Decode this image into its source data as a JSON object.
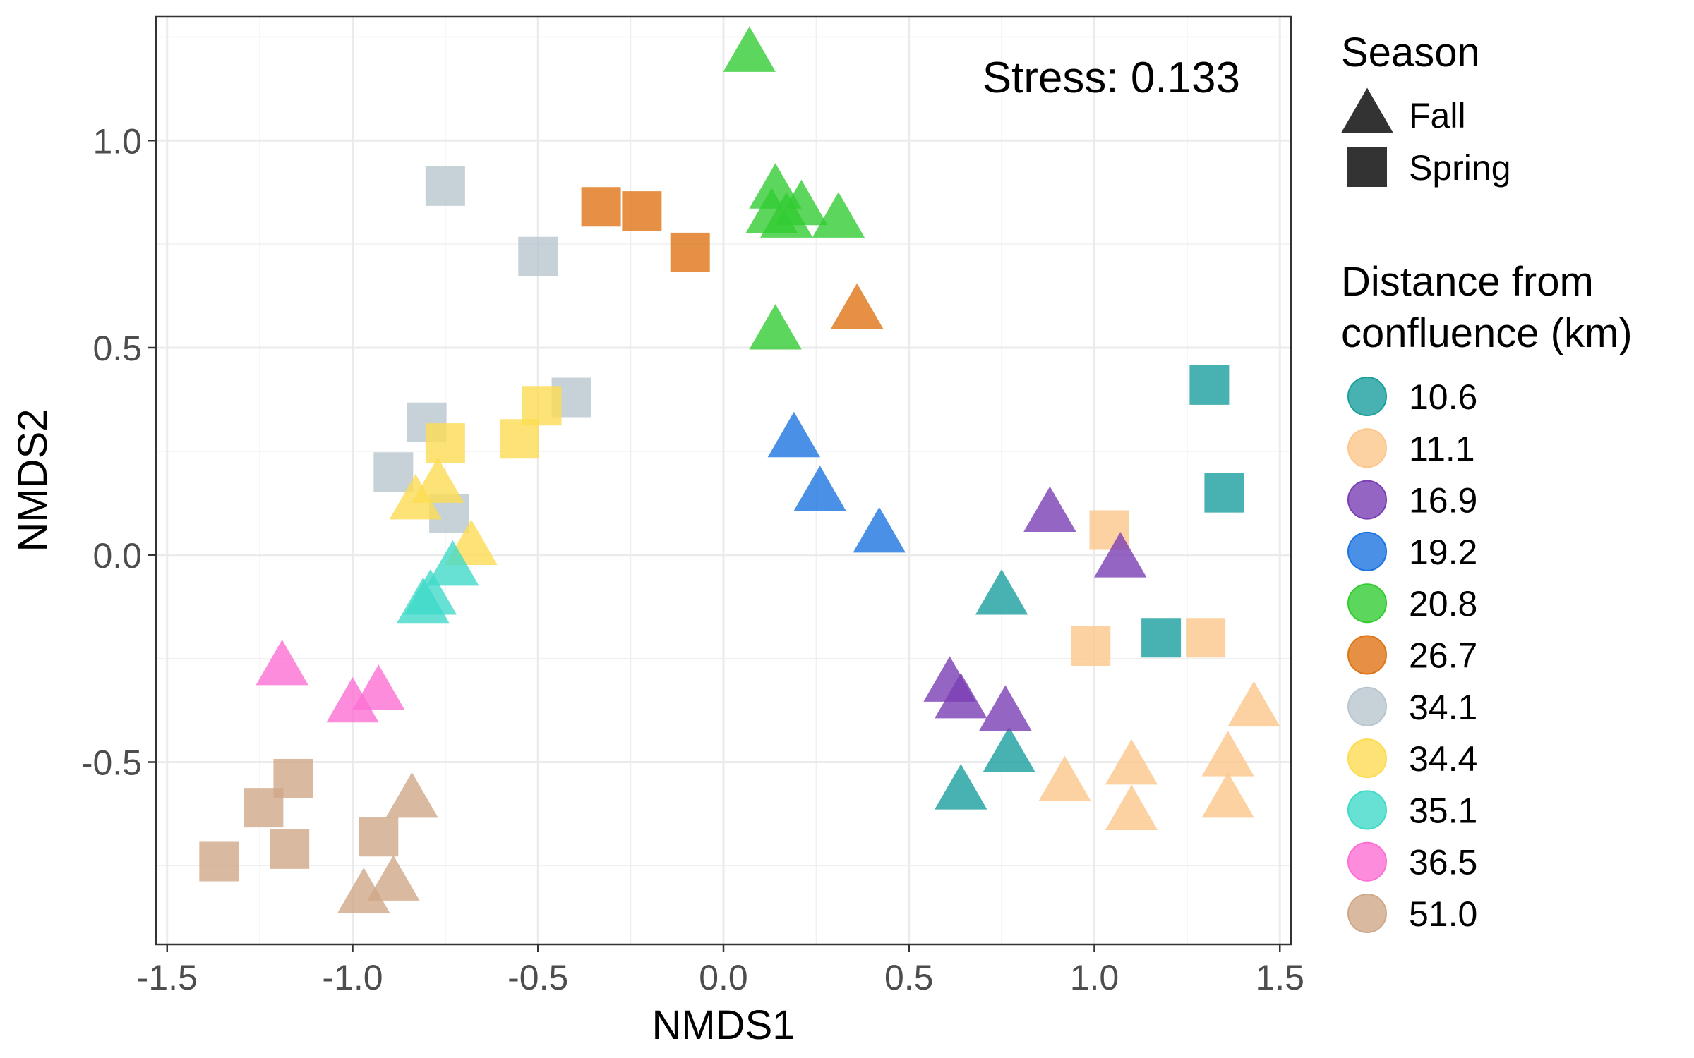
{
  "chart_data": {
    "type": "scatter",
    "title": "",
    "xlabel": "NMDS1",
    "ylabel": "NMDS2",
    "xlim": [
      -1.53,
      1.53
    ],
    "ylim": [
      -0.94,
      1.3
    ],
    "xticks": [
      -1.5,
      -1.0,
      -0.5,
      0.0,
      0.5,
      1.0,
      1.5
    ],
    "xtick_labels": [
      "-1.5",
      "-1.0",
      "-0.5",
      "0.0",
      "0.5",
      "1.0",
      "1.5"
    ],
    "yticks": [
      -0.5,
      0.0,
      0.5,
      1.0
    ],
    "ytick_labels": [
      "-0.5",
      "0.0",
      "0.5",
      "1.0"
    ],
    "grid": true,
    "annotation": "Stress: 0.133",
    "shape_legend": {
      "title": "Season",
      "entries": [
        {
          "label": "Fall",
          "shape": "triangle"
        },
        {
          "label": "Spring",
          "shape": "square"
        }
      ]
    },
    "color_legend": {
      "title_lines": [
        "Distance from",
        "confluence (km)"
      ],
      "entries": [
        {
          "label": "10.6",
          "color": "#1a9e9e"
        },
        {
          "label": "11.1",
          "color": "#fcc78b"
        },
        {
          "label": "16.9",
          "color": "#7b3fb5"
        },
        {
          "label": "19.2",
          "color": "#1c74e0"
        },
        {
          "label": "20.8",
          "color": "#33cc33"
        },
        {
          "label": "26.7",
          "color": "#de7415"
        },
        {
          "label": "34.1",
          "color": "#b9c6ce"
        },
        {
          "label": "34.4",
          "color": "#fddc52"
        },
        {
          "label": "35.1",
          "color": "#40dac9"
        },
        {
          "label": "36.5",
          "color": "#fd6fd3"
        },
        {
          "label": "51.0",
          "color": "#cfa888"
        }
      ]
    },
    "series": [
      {
        "group": "10.6",
        "points": [
          {
            "x": 1.31,
            "y": 0.41,
            "season": "Spring"
          },
          {
            "x": 1.35,
            "y": 0.15,
            "season": "Spring"
          },
          {
            "x": 1.18,
            "y": -0.2,
            "season": "Spring"
          },
          {
            "x": 0.75,
            "y": -0.1,
            "season": "Fall"
          },
          {
            "x": 0.77,
            "y": -0.48,
            "season": "Fall"
          },
          {
            "x": 0.64,
            "y": -0.57,
            "season": "Fall"
          }
        ]
      },
      {
        "group": "11.1",
        "points": [
          {
            "x": 1.04,
            "y": 0.06,
            "season": "Spring"
          },
          {
            "x": 0.99,
            "y": -0.22,
            "season": "Spring"
          },
          {
            "x": 1.3,
            "y": -0.2,
            "season": "Spring"
          },
          {
            "x": 1.43,
            "y": -0.37,
            "season": "Fall"
          },
          {
            "x": 1.36,
            "y": -0.49,
            "season": "Fall"
          },
          {
            "x": 1.36,
            "y": -0.59,
            "season": "Fall"
          },
          {
            "x": 1.1,
            "y": -0.51,
            "season": "Fall"
          },
          {
            "x": 1.1,
            "y": -0.62,
            "season": "Fall"
          },
          {
            "x": 0.92,
            "y": -0.55,
            "season": "Fall"
          }
        ]
      },
      {
        "group": "16.9",
        "points": [
          {
            "x": 0.88,
            "y": 0.1,
            "season": "Fall"
          },
          {
            "x": 1.07,
            "y": -0.01,
            "season": "Fall"
          },
          {
            "x": 0.61,
            "y": -0.31,
            "season": "Fall"
          },
          {
            "x": 0.64,
            "y": -0.35,
            "season": "Fall"
          },
          {
            "x": 0.76,
            "y": -0.38,
            "season": "Fall"
          }
        ]
      },
      {
        "group": "19.2",
        "points": [
          {
            "x": 0.19,
            "y": 0.28,
            "season": "Fall"
          },
          {
            "x": 0.26,
            "y": 0.15,
            "season": "Fall"
          },
          {
            "x": 0.42,
            "y": 0.05,
            "season": "Fall"
          }
        ]
      },
      {
        "group": "20.8",
        "points": [
          {
            "x": 0.07,
            "y": 1.21,
            "season": "Fall"
          },
          {
            "x": 0.14,
            "y": 0.88,
            "season": "Fall"
          },
          {
            "x": 0.21,
            "y": 0.84,
            "season": "Fall"
          },
          {
            "x": 0.13,
            "y": 0.82,
            "season": "Fall"
          },
          {
            "x": 0.17,
            "y": 0.81,
            "season": "Fall"
          },
          {
            "x": 0.31,
            "y": 0.81,
            "season": "Fall"
          },
          {
            "x": 0.14,
            "y": 0.54,
            "season": "Fall"
          }
        ]
      },
      {
        "group": "26.7",
        "points": [
          {
            "x": -0.33,
            "y": 0.84,
            "season": "Spring"
          },
          {
            "x": -0.22,
            "y": 0.83,
            "season": "Spring"
          },
          {
            "x": -0.09,
            "y": 0.73,
            "season": "Spring"
          },
          {
            "x": 0.36,
            "y": 0.59,
            "season": "Fall"
          }
        ]
      },
      {
        "group": "34.1",
        "points": [
          {
            "x": -0.75,
            "y": 0.89,
            "season": "Spring"
          },
          {
            "x": -0.5,
            "y": 0.72,
            "season": "Spring"
          },
          {
            "x": -0.41,
            "y": 0.38,
            "season": "Spring"
          },
          {
            "x": -0.8,
            "y": 0.32,
            "season": "Spring"
          },
          {
            "x": -0.89,
            "y": 0.2,
            "season": "Spring"
          },
          {
            "x": -0.74,
            "y": 0.1,
            "season": "Spring"
          }
        ]
      },
      {
        "group": "34.4",
        "points": [
          {
            "x": -0.49,
            "y": 0.36,
            "season": "Spring"
          },
          {
            "x": -0.55,
            "y": 0.28,
            "season": "Spring"
          },
          {
            "x": -0.75,
            "y": 0.27,
            "season": "Spring"
          },
          {
            "x": -0.77,
            "y": 0.17,
            "season": "Fall"
          },
          {
            "x": -0.83,
            "y": 0.13,
            "season": "Fall"
          },
          {
            "x": -0.68,
            "y": 0.02,
            "season": "Fall"
          }
        ]
      },
      {
        "group": "35.1",
        "points": [
          {
            "x": -0.73,
            "y": -0.03,
            "season": "Fall"
          },
          {
            "x": -0.79,
            "y": -0.1,
            "season": "Fall"
          },
          {
            "x": -0.81,
            "y": -0.12,
            "season": "Fall"
          }
        ]
      },
      {
        "group": "36.5",
        "points": [
          {
            "x": -1.19,
            "y": -0.27,
            "season": "Fall"
          },
          {
            "x": -0.93,
            "y": -0.33,
            "season": "Fall"
          },
          {
            "x": -1.0,
            "y": -0.36,
            "season": "Fall"
          }
        ]
      },
      {
        "group": "51.0",
        "points": [
          {
            "x": -1.16,
            "y": -0.54,
            "season": "Spring"
          },
          {
            "x": -1.24,
            "y": -0.61,
            "season": "Spring"
          },
          {
            "x": -0.93,
            "y": -0.68,
            "season": "Spring"
          },
          {
            "x": -1.17,
            "y": -0.71,
            "season": "Spring"
          },
          {
            "x": -1.36,
            "y": -0.74,
            "season": "Spring"
          },
          {
            "x": -0.84,
            "y": -0.59,
            "season": "Fall"
          },
          {
            "x": -0.89,
            "y": -0.79,
            "season": "Fall"
          },
          {
            "x": -0.97,
            "y": -0.82,
            "season": "Fall"
          }
        ]
      }
    ]
  }
}
